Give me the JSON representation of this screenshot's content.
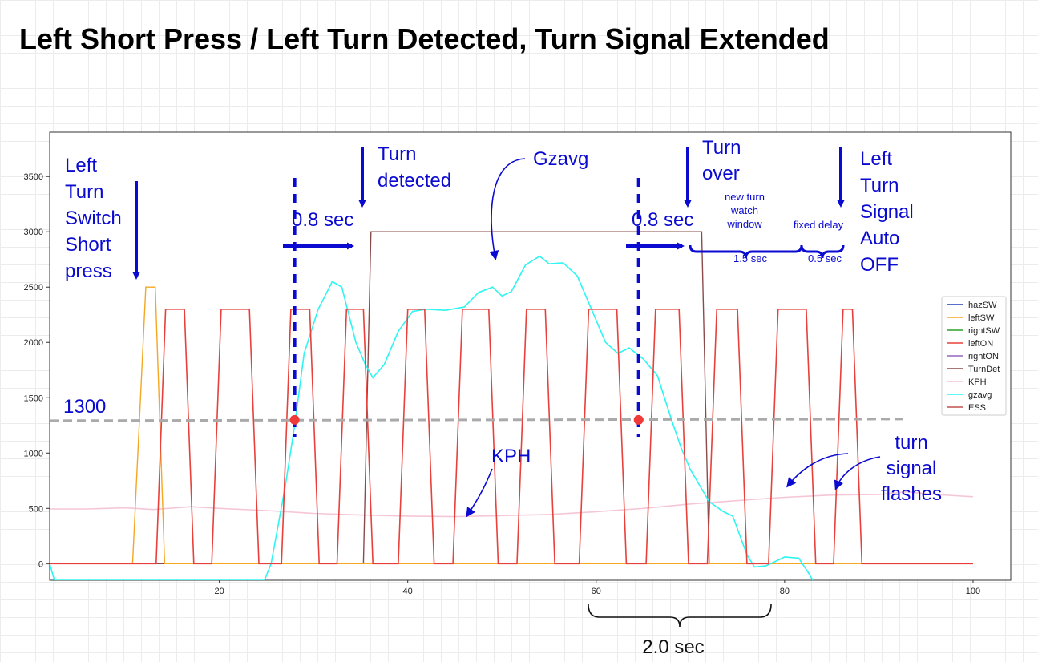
{
  "title": "Left Short Press / Left Turn Detected, Turn Signal Extended",
  "chart_data": {
    "type": "line",
    "xlim": [
      2,
      104
    ],
    "ylim": [
      -150,
      3900
    ],
    "x_ticks": [
      20,
      40,
      60,
      80,
      100
    ],
    "y_ticks": [
      0,
      500,
      1000,
      1500,
      2000,
      2500,
      3000,
      3500
    ],
    "grid": false,
    "legend_position": "right",
    "series": [
      {
        "name": "hazSW",
        "color": "#1f3fbf",
        "points": [
          [
            2,
            0
          ],
          [
            100,
            0
          ]
        ]
      },
      {
        "name": "leftSW",
        "color": "#f5a623",
        "points": [
          [
            2,
            0
          ],
          [
            10.8,
            0
          ],
          [
            12.2,
            2500
          ],
          [
            13.2,
            2500
          ],
          [
            14.2,
            0
          ],
          [
            100,
            0
          ]
        ]
      },
      {
        "name": "rightSW",
        "color": "#2ca02c",
        "points": [
          [
            2,
            0
          ],
          [
            100,
            0
          ]
        ]
      },
      {
        "name": "leftON",
        "color": "#e8403a",
        "points": [
          [
            2,
            0
          ],
          [
            13.3,
            0
          ],
          [
            14.3,
            2300
          ],
          [
            16.3,
            2300
          ],
          [
            17.3,
            0
          ],
          [
            19.2,
            0
          ],
          [
            20.2,
            2300
          ],
          [
            23.2,
            2300
          ],
          [
            24.2,
            0
          ],
          [
            26.6,
            0
          ],
          [
            27.6,
            2300
          ],
          [
            29.6,
            2300
          ],
          [
            30.6,
            0
          ],
          [
            32.5,
            0
          ],
          [
            33.5,
            2300
          ],
          [
            35.3,
            2300
          ],
          [
            36.3,
            0
          ],
          [
            39,
            0
          ],
          [
            40,
            2300
          ],
          [
            41.8,
            2300
          ],
          [
            42.8,
            0
          ],
          [
            44.8,
            0
          ],
          [
            45.8,
            2300
          ],
          [
            48.6,
            2300
          ],
          [
            49.6,
            0
          ],
          [
            51.6,
            0
          ],
          [
            52.6,
            2300
          ],
          [
            54.6,
            2300
          ],
          [
            55.6,
            0
          ],
          [
            58.2,
            0
          ],
          [
            59.2,
            2300
          ],
          [
            62.2,
            2300
          ],
          [
            63.2,
            0
          ],
          [
            65.3,
            0
          ],
          [
            66.3,
            2300
          ],
          [
            68.8,
            2300
          ],
          [
            69.8,
            0
          ],
          [
            71.8,
            0
          ],
          [
            72.8,
            2300
          ],
          [
            75,
            2300
          ],
          [
            76,
            0
          ],
          [
            78.3,
            0
          ],
          [
            79.3,
            2300
          ],
          [
            82.3,
            2300
          ],
          [
            83.3,
            0
          ],
          [
            85.2,
            0
          ],
          [
            86.2,
            2300
          ],
          [
            87.2,
            2300
          ],
          [
            88.2,
            0
          ],
          [
            100,
            0
          ]
        ]
      },
      {
        "name": "rightON",
        "color": "#9467bd",
        "points": [
          [
            2,
            0
          ],
          [
            100,
            0
          ]
        ]
      },
      {
        "name": "TurnDet",
        "color": "#8c4b4b",
        "points": [
          [
            2,
            0
          ],
          [
            35.3,
            0
          ],
          [
            36.1,
            3000
          ],
          [
            71.2,
            3000
          ],
          [
            72,
            0
          ],
          [
            100,
            0
          ]
        ]
      },
      {
        "name": "KPH",
        "color": "#f5c6d6",
        "points": [
          [
            2,
            495
          ],
          [
            6,
            495
          ],
          [
            10,
            505
          ],
          [
            13,
            490
          ],
          [
            17,
            515
          ],
          [
            20,
            500
          ],
          [
            25,
            480
          ],
          [
            30,
            455
          ],
          [
            35,
            440
          ],
          [
            40,
            430
          ],
          [
            45,
            425
          ],
          [
            50,
            435
          ],
          [
            55,
            445
          ],
          [
            60,
            470
          ],
          [
            65,
            500
          ],
          [
            70,
            540
          ],
          [
            75,
            570
          ],
          [
            80,
            600
          ],
          [
            85,
            620
          ],
          [
            90,
            625
          ],
          [
            93,
            650
          ],
          [
            96,
            625
          ],
          [
            100,
            605
          ]
        ]
      },
      {
        "name": "gzavg",
        "color": "#2ef5f0",
        "points": [
          [
            2,
            0
          ],
          [
            2.5,
            -150
          ],
          [
            24.8,
            -150
          ],
          [
            25.5,
            0
          ],
          [
            27,
            700
          ],
          [
            28,
            1250
          ],
          [
            29,
            1900
          ],
          [
            30.5,
            2300
          ],
          [
            32,
            2550
          ],
          [
            33,
            2500
          ],
          [
            34.5,
            2000
          ],
          [
            35.5,
            1800
          ],
          [
            36.3,
            1680
          ],
          [
            37.5,
            1800
          ],
          [
            39,
            2100
          ],
          [
            40.5,
            2280
          ],
          [
            42,
            2300
          ],
          [
            44,
            2290
          ],
          [
            46,
            2320
          ],
          [
            47.5,
            2450
          ],
          [
            49,
            2500
          ],
          [
            50,
            2420
          ],
          [
            51,
            2460
          ],
          [
            52.5,
            2700
          ],
          [
            54,
            2780
          ],
          [
            55,
            2710
          ],
          [
            56.5,
            2720
          ],
          [
            58,
            2600
          ],
          [
            59.5,
            2300
          ],
          [
            61,
            2000
          ],
          [
            62.3,
            1900
          ],
          [
            63.5,
            1950
          ],
          [
            65,
            1850
          ],
          [
            66.5,
            1700
          ],
          [
            68,
            1300
          ],
          [
            69,
            1050
          ],
          [
            70,
            850
          ],
          [
            72,
            560
          ],
          [
            73.5,
            470
          ],
          [
            74.5,
            430
          ],
          [
            76,
            80
          ],
          [
            76.8,
            -30
          ],
          [
            78,
            -20
          ],
          [
            80,
            60
          ],
          [
            81.5,
            50
          ],
          [
            82.5,
            -80
          ],
          [
            83,
            -150
          ]
        ]
      },
      {
        "name": "ESS",
        "color": "#c0504d",
        "points": [
          [
            2,
            0
          ],
          [
            100,
            0
          ]
        ]
      }
    ],
    "threshold": {
      "value": 1300,
      "x_range": [
        2,
        93
      ],
      "label": "1300"
    },
    "markers": [
      {
        "x": 28,
        "y": 1300
      },
      {
        "x": 64.5,
        "y": 1300
      }
    ],
    "annotations": {
      "left_switch": "Left\nTurn\nSwitch\nShort\npress",
      "delay1": "0.8 sec",
      "turn_detected": "Turn\ndetected",
      "gzavg": "Gzavg",
      "delay2": "0.8 sec",
      "turn_over": "Turn\nover",
      "watch_window": "new turn\nwatch\nwindow",
      "watch_window_time": "1.5 sec",
      "fixed_delay": "fixed delay",
      "fixed_delay_time": "0.5 sec",
      "auto_off": "Left\nTurn\nSignal\nAuto\nOFF",
      "kph": "KPH",
      "flashes": "turn\nsignal\nflashes",
      "below_brace": "2.0 sec"
    }
  }
}
